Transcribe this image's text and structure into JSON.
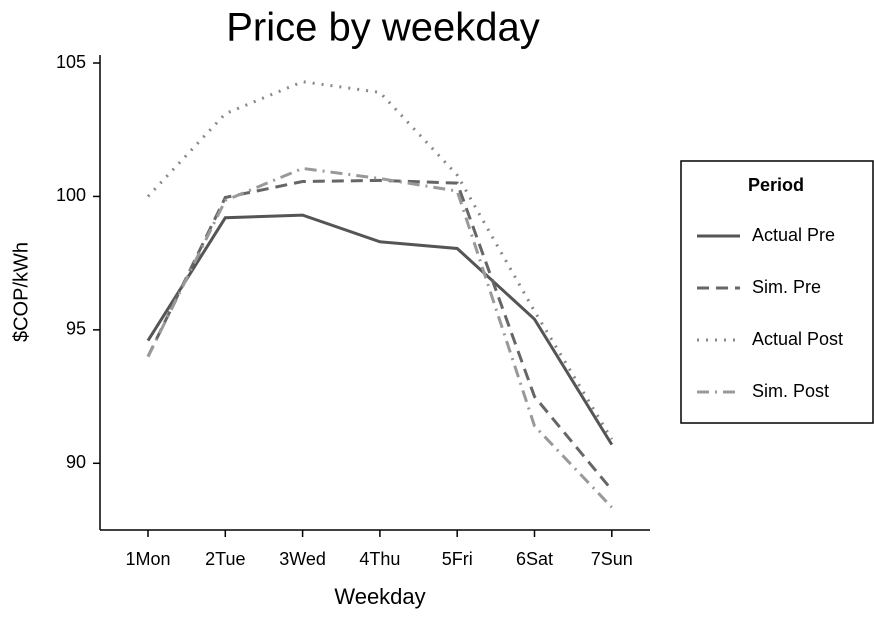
{
  "chart_data": {
    "type": "line",
    "title": "Price by weekday",
    "x_label": "Weekday",
    "y_label": "$COP/kWh",
    "categories": [
      "1Mon",
      "2Tue",
      "3Wed",
      "4Thu",
      "5Fri",
      "6Sat",
      "7Sun"
    ],
    "legend_title": "Period",
    "legend_position": "right",
    "series": [
      {
        "name": "Actual Pre",
        "color": "#555555",
        "linestyle": "solid",
        "values": [
          94.6,
          99.2,
          99.3,
          98.3,
          98.05,
          95.4,
          90.7
        ]
      },
      {
        "name": "Sim. Pre",
        "color": "#666666",
        "linestyle": "dashed",
        "values": [
          94.0,
          99.96,
          100.56,
          100.6,
          100.5,
          92.5,
          89.0
        ]
      },
      {
        "name": "Actual Post",
        "color": "#888888",
        "linestyle": "dotted",
        "values": [
          100.0,
          103.1,
          104.3,
          103.9,
          100.8,
          95.7,
          90.9
        ]
      },
      {
        "name": "Sim. Post",
        "color": "#999999",
        "linestyle": "dashdot",
        "values": [
          94.0,
          99.85,
          101.05,
          100.67,
          100.2,
          91.4,
          88.35
        ]
      }
    ],
    "ylim": [
      87.5,
      105.3
    ],
    "yticks": [
      90,
      95,
      100,
      105
    ],
    "grid": false
  }
}
